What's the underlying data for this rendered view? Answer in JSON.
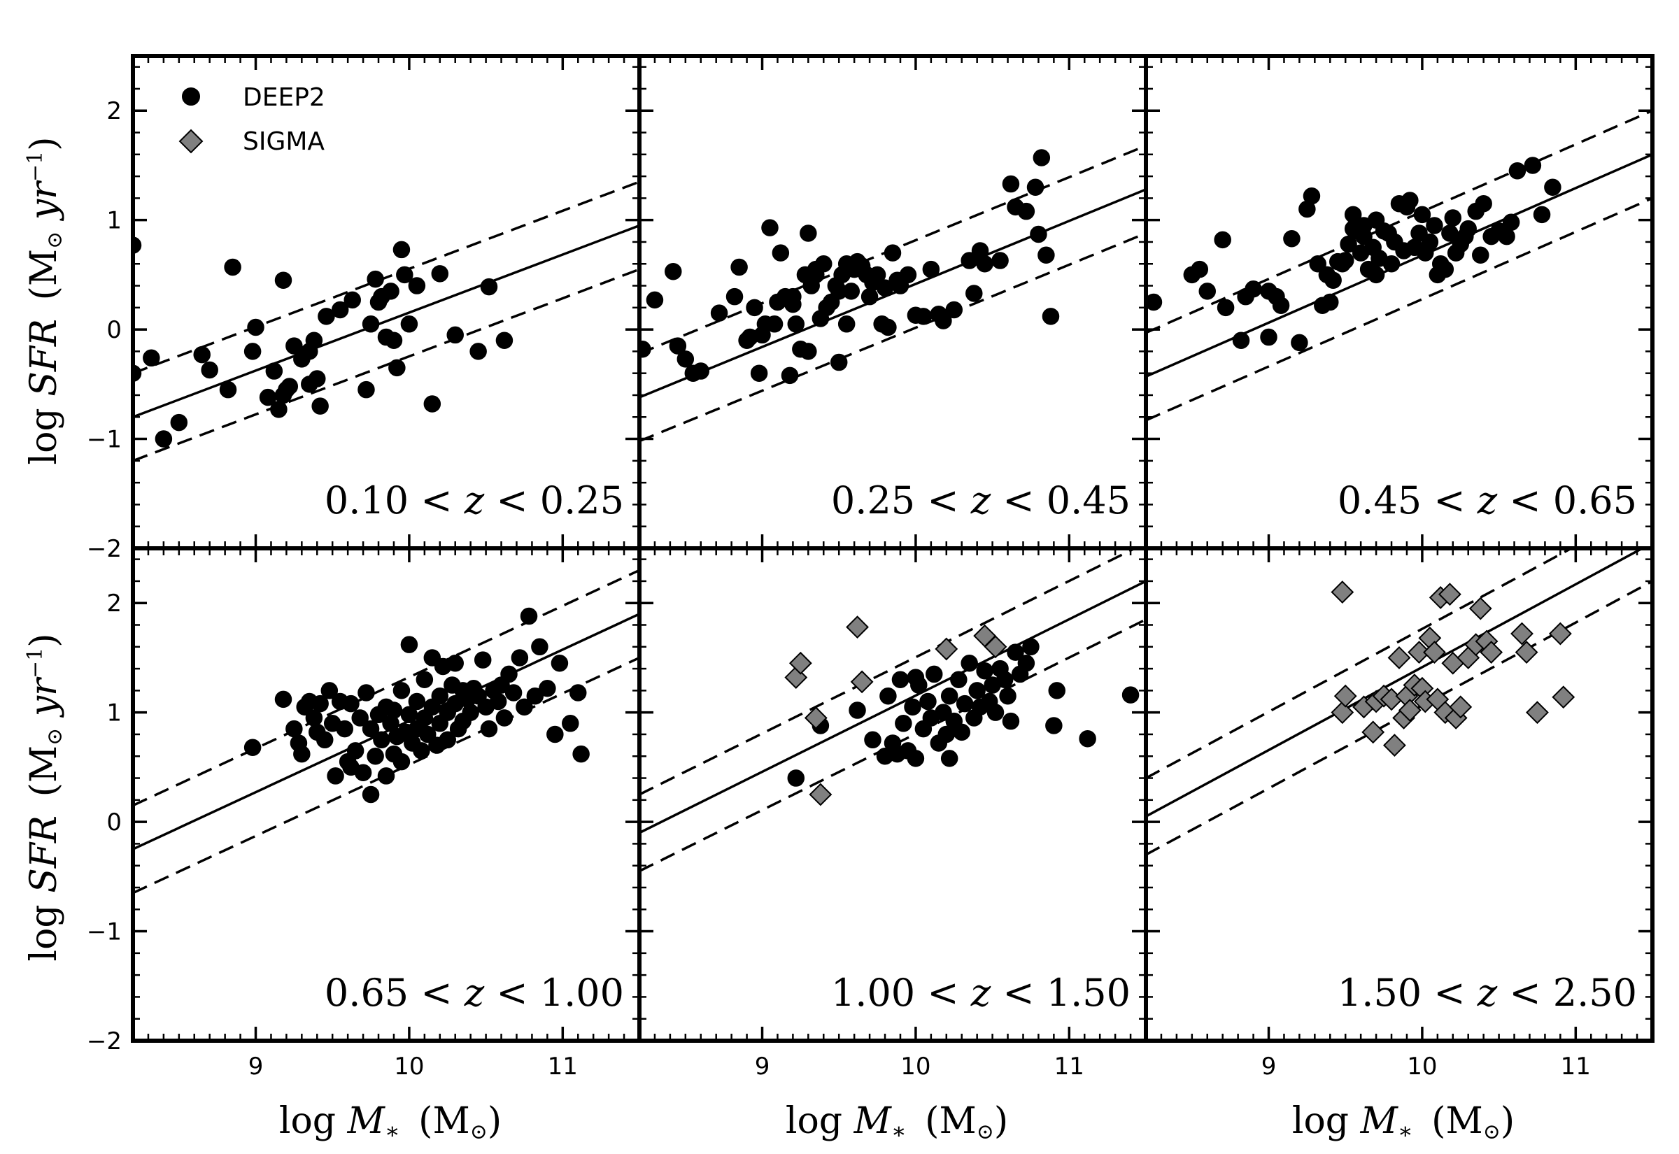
{
  "colors": {
    "deep2": "#000000",
    "sigma": "#808080",
    "edge": "#000000"
  },
  "figure": {
    "ylabel": {
      "prefix": "log ",
      "var": "SFR",
      "unit_open": " (M",
      "unit_sub": "⊙",
      "unit_mid": " yr",
      "unit_sup": "−1",
      "unit_close": ")"
    },
    "xlabel": {
      "prefix": "log ",
      "var": "M",
      "sub": "∗",
      "unit_open": " (M",
      "unit_sub": "⊙",
      "unit_close": ")"
    },
    "x_tick_labels": [
      "9",
      "10",
      "11"
    ],
    "y_tick_labels": [
      "−2",
      "−1",
      "0",
      "1",
      "2"
    ],
    "legend": {
      "position": "top-left of first panel",
      "items": [
        {
          "label": "DEEP2",
          "marker": "filled-circle"
        },
        {
          "label": "SIGMA",
          "marker": "gray-diamond"
        }
      ]
    }
  },
  "chart_data": [
    {
      "type": "scatter",
      "panel_label": {
        "lo": "0.10",
        "hi": "0.25"
      },
      "xlim": [
        8.2,
        11.5
      ],
      "ylim": [
        -2,
        2.5
      ],
      "fit": {
        "x": [
          8.2,
          11.5
        ],
        "y": [
          -0.8,
          0.95
        ],
        "scatter_dex": 0.4
      },
      "series": [
        {
          "name": "DEEP2",
          "marker": "circle",
          "x": [
            8.2,
            8.32,
            8.5,
            8.65,
            8.7,
            8.82,
            8.85,
            8.98,
            9.0,
            9.08,
            9.12,
            9.15,
            9.18,
            9.18,
            9.2,
            9.22,
            9.25,
            9.3,
            9.35,
            9.35,
            9.38,
            9.4,
            9.42,
            9.46,
            9.55,
            9.63,
            9.72,
            9.75,
            9.78,
            9.8,
            9.82,
            9.85,
            9.88,
            9.9,
            9.92,
            9.95,
            9.97,
            10.0,
            10.05,
            10.15,
            10.2,
            10.3,
            10.45,
            10.52,
            10.62,
            8.2,
            8.4
          ],
          "y": [
            -0.4,
            -0.26,
            -0.85,
            -0.23,
            -0.37,
            -0.55,
            0.57,
            -0.2,
            0.02,
            -0.62,
            -0.38,
            -0.73,
            0.45,
            -0.6,
            -0.55,
            -0.52,
            -0.15,
            -0.27,
            -0.2,
            -0.5,
            -0.1,
            -0.45,
            -0.7,
            0.12,
            0.18,
            0.27,
            -0.55,
            0.05,
            0.46,
            0.25,
            0.3,
            -0.07,
            0.35,
            -0.1,
            -0.35,
            0.73,
            0.5,
            0.05,
            0.4,
            -0.68,
            0.51,
            -0.05,
            -0.2,
            0.39,
            -0.1,
            0.77,
            -1.0
          ]
        }
      ]
    },
    {
      "type": "scatter",
      "panel_label": {
        "lo": "0.25",
        "hi": "0.45"
      },
      "xlim": [
        8.2,
        11.5
      ],
      "ylim": [
        -2,
        2.5
      ],
      "fit": {
        "x": [
          8.2,
          11.5
        ],
        "y": [
          -0.62,
          1.28
        ],
        "scatter_dex": 0.4
      },
      "series": [
        {
          "name": "DEEP2",
          "marker": "circle",
          "x": [
            8.22,
            8.3,
            8.42,
            8.45,
            8.5,
            8.55,
            8.6,
            8.72,
            8.82,
            8.85,
            8.9,
            8.92,
            8.95,
            8.98,
            9.0,
            9.02,
            9.05,
            9.08,
            9.1,
            9.12,
            9.15,
            9.18,
            9.2,
            9.2,
            9.22,
            9.25,
            9.28,
            9.3,
            9.3,
            9.32,
            9.35,
            9.35,
            9.38,
            9.4,
            9.42,
            9.45,
            9.48,
            9.5,
            9.5,
            9.52,
            9.55,
            9.55,
            9.58,
            9.6,
            9.62,
            9.65,
            9.68,
            9.7,
            9.72,
            9.75,
            9.78,
            9.8,
            9.82,
            9.85,
            9.88,
            9.9,
            9.95,
            10.0,
            10.05,
            10.1,
            10.15,
            10.18,
            10.25,
            10.35,
            10.38,
            10.42,
            10.45,
            10.55,
            10.62,
            10.65,
            10.72,
            10.78,
            10.8,
            10.82,
            10.85,
            10.88
          ],
          "y": [
            -0.18,
            0.27,
            0.53,
            -0.15,
            -0.27,
            -0.4,
            -0.38,
            0.15,
            0.3,
            0.57,
            -0.1,
            -0.07,
            0.2,
            -0.4,
            -0.05,
            0.05,
            0.93,
            0.05,
            0.25,
            0.7,
            0.3,
            -0.42,
            0.23,
            0.3,
            0.05,
            -0.18,
            0.5,
            0.88,
            -0.2,
            0.4,
            0.55,
            0.5,
            0.1,
            0.6,
            0.2,
            0.25,
            0.4,
            -0.3,
            0.35,
            0.5,
            0.6,
            0.05,
            0.35,
            0.55,
            0.62,
            0.58,
            0.5,
            0.3,
            0.43,
            0.5,
            0.05,
            0.38,
            0.02,
            0.7,
            0.45,
            0.4,
            0.5,
            0.13,
            0.12,
            0.55,
            0.14,
            0.08,
            0.18,
            0.63,
            0.33,
            0.72,
            0.6,
            0.63,
            1.33,
            1.12,
            1.08,
            1.3,
            0.87,
            1.57,
            0.68,
            0.12
          ]
        }
      ]
    },
    {
      "type": "scatter",
      "panel_label": {
        "lo": "0.45",
        "hi": "0.65"
      },
      "xlim": [
        8.2,
        11.5
      ],
      "ylim": [
        -2,
        2.5
      ],
      "fit": {
        "x": [
          8.2,
          11.5
        ],
        "y": [
          -0.43,
          1.6
        ],
        "scatter_dex": 0.4
      },
      "series": [
        {
          "name": "DEEP2",
          "marker": "circle",
          "x": [
            8.25,
            8.5,
            8.55,
            8.6,
            8.7,
            8.72,
            8.82,
            8.85,
            8.9,
            9.0,
            9.0,
            9.05,
            9.08,
            9.15,
            9.2,
            9.25,
            9.28,
            9.32,
            9.35,
            9.38,
            9.4,
            9.42,
            9.45,
            9.48,
            9.5,
            9.52,
            9.55,
            9.55,
            9.58,
            9.6,
            9.62,
            9.62,
            9.65,
            9.68,
            9.7,
            9.7,
            9.72,
            9.75,
            9.78,
            9.8,
            9.82,
            9.85,
            9.88,
            9.9,
            9.92,
            9.95,
            9.98,
            10.0,
            10.02,
            10.05,
            10.08,
            10.1,
            10.12,
            10.15,
            10.18,
            10.2,
            10.22,
            10.25,
            10.28,
            10.3,
            10.35,
            10.38,
            10.4,
            10.45,
            10.5,
            10.55,
            10.58,
            10.62,
            10.72,
            10.78,
            10.85
          ],
          "y": [
            0.25,
            0.5,
            0.55,
            0.35,
            0.82,
            0.2,
            -0.1,
            0.3,
            0.37,
            -0.07,
            0.35,
            0.3,
            0.22,
            0.83,
            -0.12,
            1.1,
            1.22,
            0.6,
            0.22,
            0.5,
            0.25,
            0.45,
            0.62,
            0.6,
            0.63,
            0.78,
            1.05,
            0.92,
            0.9,
            0.7,
            0.85,
            0.95,
            0.55,
            0.75,
            0.5,
            1.0,
            0.65,
            0.9,
            0.88,
            0.6,
            0.8,
            1.15,
            0.72,
            1.12,
            1.18,
            0.75,
            0.88,
            1.05,
            0.7,
            0.8,
            0.95,
            0.5,
            0.6,
            0.55,
            0.88,
            1.02,
            0.7,
            0.78,
            0.85,
            0.92,
            1.08,
            0.68,
            1.15,
            0.85,
            0.9,
            0.85,
            0.98,
            1.45,
            1.5,
            1.05,
            1.3
          ]
        }
      ]
    },
    {
      "type": "scatter",
      "panel_label": {
        "lo": "0.65",
        "hi": "1.00"
      },
      "xlim": [
        8.2,
        11.5
      ],
      "ylim": [
        -2,
        2.5
      ],
      "fit": {
        "x": [
          8.2,
          11.5
        ],
        "y": [
          -0.25,
          1.9
        ],
        "scatter_dex": 0.4
      },
      "series": [
        {
          "name": "DEEP2",
          "marker": "circle",
          "x": [
            8.98,
            9.18,
            9.25,
            9.28,
            9.3,
            9.32,
            9.35,
            9.38,
            9.4,
            9.42,
            9.45,
            9.48,
            9.5,
            9.52,
            9.55,
            9.58,
            9.6,
            9.62,
            9.62,
            9.65,
            9.68,
            9.7,
            9.72,
            9.75,
            9.75,
            9.78,
            9.8,
            9.82,
            9.85,
            9.85,
            9.88,
            9.9,
            9.9,
            9.92,
            9.95,
            9.95,
            9.98,
            10.0,
            10.0,
            10.02,
            10.05,
            10.05,
            10.08,
            10.1,
            10.1,
            10.12,
            10.15,
            10.15,
            10.18,
            10.2,
            10.2,
            10.22,
            10.25,
            10.25,
            10.28,
            10.3,
            10.3,
            10.32,
            10.35,
            10.35,
            10.38,
            10.4,
            10.42,
            10.45,
            10.48,
            10.5,
            10.52,
            10.55,
            10.58,
            10.6,
            10.62,
            10.65,
            10.68,
            10.72,
            10.75,
            10.78,
            10.82,
            10.85,
            10.9,
            10.95,
            10.98,
            11.05,
            11.1,
            11.12
          ],
          "y": [
            0.68,
            1.12,
            0.85,
            0.72,
            0.62,
            1.05,
            1.1,
            0.95,
            0.82,
            1.08,
            0.75,
            1.2,
            0.9,
            0.42,
            1.1,
            0.85,
            0.55,
            0.5,
            1.08,
            0.65,
            0.95,
            0.45,
            1.18,
            0.25,
            0.85,
            0.6,
            0.98,
            0.75,
            1.05,
            0.42,
            0.9,
            0.62,
            1.02,
            0.78,
            0.55,
            1.2,
            0.82,
            1.62,
            0.98,
            0.72,
            0.85,
            1.1,
            0.65,
            0.95,
            1.3,
            0.8,
            1.5,
            1.05,
            0.7,
            1.15,
            0.9,
            1.42,
            1.0,
            0.75,
            1.25,
            1.08,
            1.45,
            0.85,
            1.2,
            0.92,
            1.12,
            1.0,
            1.22,
            1.15,
            1.48,
            1.05,
            0.85,
            1.2,
            1.1,
            1.25,
            0.95,
            1.35,
            1.18,
            1.5,
            1.05,
            1.88,
            1.15,
            1.6,
            1.22,
            0.8,
            1.45,
            0.9,
            1.18,
            0.62
          ]
        }
      ]
    },
    {
      "type": "scatter",
      "panel_label": {
        "lo": "1.00",
        "hi": "1.50"
      },
      "xlim": [
        8.2,
        11.5
      ],
      "ylim": [
        -2,
        2.5
      ],
      "fit": {
        "x": [
          8.2,
          11.5
        ],
        "y": [
          -0.1,
          2.2
        ],
        "scatter_dex": 0.35
      },
      "series": [
        {
          "name": "DEEP2",
          "marker": "circle",
          "x": [
            9.22,
            9.38,
            9.62,
            9.72,
            9.8,
            9.82,
            9.85,
            9.88,
            9.9,
            9.92,
            9.95,
            9.98,
            10.0,
            10.02,
            10.05,
            10.08,
            10.1,
            10.12,
            10.15,
            10.18,
            10.2,
            10.22,
            10.25,
            10.28,
            10.3,
            10.32,
            10.35,
            10.38,
            10.4,
            10.42,
            10.45,
            10.48,
            10.5,
            10.52,
            10.55,
            10.58,
            10.6,
            10.62,
            10.65,
            10.68,
            10.72,
            10.75,
            10.9,
            10.92,
            11.12,
            11.4,
            10.22,
            10.0
          ],
          "y": [
            0.4,
            0.88,
            1.02,
            0.75,
            0.6,
            1.15,
            0.72,
            0.62,
            1.3,
            0.9,
            0.65,
            1.05,
            0.58,
            1.25,
            0.85,
            1.1,
            0.95,
            1.35,
            0.72,
            1.0,
            0.8,
            1.15,
            0.92,
            1.3,
            0.82,
            1.08,
            1.45,
            0.95,
            1.2,
            1.05,
            1.38,
            1.1,
            1.25,
            1.0,
            1.4,
            1.3,
            1.15,
            0.92,
            1.55,
            1.35,
            1.45,
            1.6,
            0.88,
            1.2,
            0.76,
            1.16,
            0.58,
            1.32
          ]
        },
        {
          "name": "SIGMA",
          "marker": "diamond",
          "x": [
            9.22,
            9.25,
            9.35,
            9.38,
            9.62,
            9.65,
            10.2,
            10.45,
            10.52
          ],
          "y": [
            1.32,
            1.45,
            0.95,
            0.25,
            1.78,
            1.28,
            1.58,
            1.7,
            1.6
          ]
        }
      ]
    },
    {
      "type": "scatter",
      "panel_label": {
        "lo": "1.50",
        "hi": "2.50"
      },
      "xlim": [
        8.2,
        11.5
      ],
      "ylim": [
        -2,
        2.5
      ],
      "fit": {
        "x": [
          8.2,
          11.5
        ],
        "y": [
          0.05,
          2.55
        ],
        "scatter_dex": 0.35
      },
      "series": [
        {
          "name": "SIGMA",
          "marker": "diamond",
          "x": [
            9.48,
            9.48,
            9.5,
            9.62,
            9.68,
            9.7,
            9.75,
            9.8,
            9.82,
            9.85,
            9.88,
            9.9,
            9.92,
            9.95,
            9.98,
            10.0,
            10.02,
            10.05,
            10.08,
            10.1,
            10.12,
            10.15,
            10.18,
            10.2,
            10.22,
            10.25,
            10.3,
            10.35,
            10.38,
            10.42,
            10.45,
            10.65,
            10.68,
            10.75,
            10.9,
            10.92
          ],
          "y": [
            2.1,
            1.0,
            1.15,
            1.05,
            0.82,
            1.1,
            1.15,
            1.12,
            0.7,
            1.5,
            0.95,
            1.15,
            1.02,
            1.25,
            1.55,
            1.22,
            1.1,
            1.68,
            1.55,
            1.12,
            2.05,
            1.0,
            2.08,
            1.45,
            0.95,
            1.05,
            1.5,
            1.62,
            1.95,
            1.65,
            1.55,
            1.72,
            1.55,
            1.0,
            1.72,
            1.14
          ]
        }
      ]
    }
  ]
}
